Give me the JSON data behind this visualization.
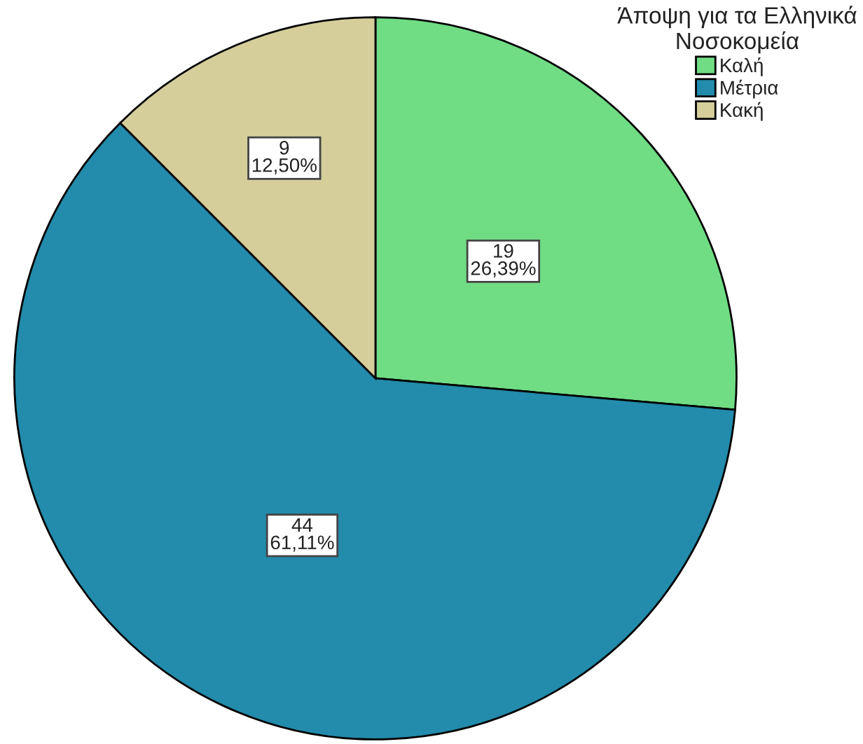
{
  "chart_data": {
    "type": "pie",
    "categories": [
      "Καλή",
      "Μέτρια",
      "Κακή"
    ],
    "values": [
      19,
      44,
      9
    ],
    "colors": [
      "#70dc84",
      "#238bab",
      "#d5ce9b"
    ],
    "value_labels": [
      "19\n26,39%",
      "44\n61,11%",
      "9\n12,50%"
    ],
    "legend_title": "Άποψη για τα Ελληνικά\nΝοσοκομεία",
    "legend": "top right"
  }
}
